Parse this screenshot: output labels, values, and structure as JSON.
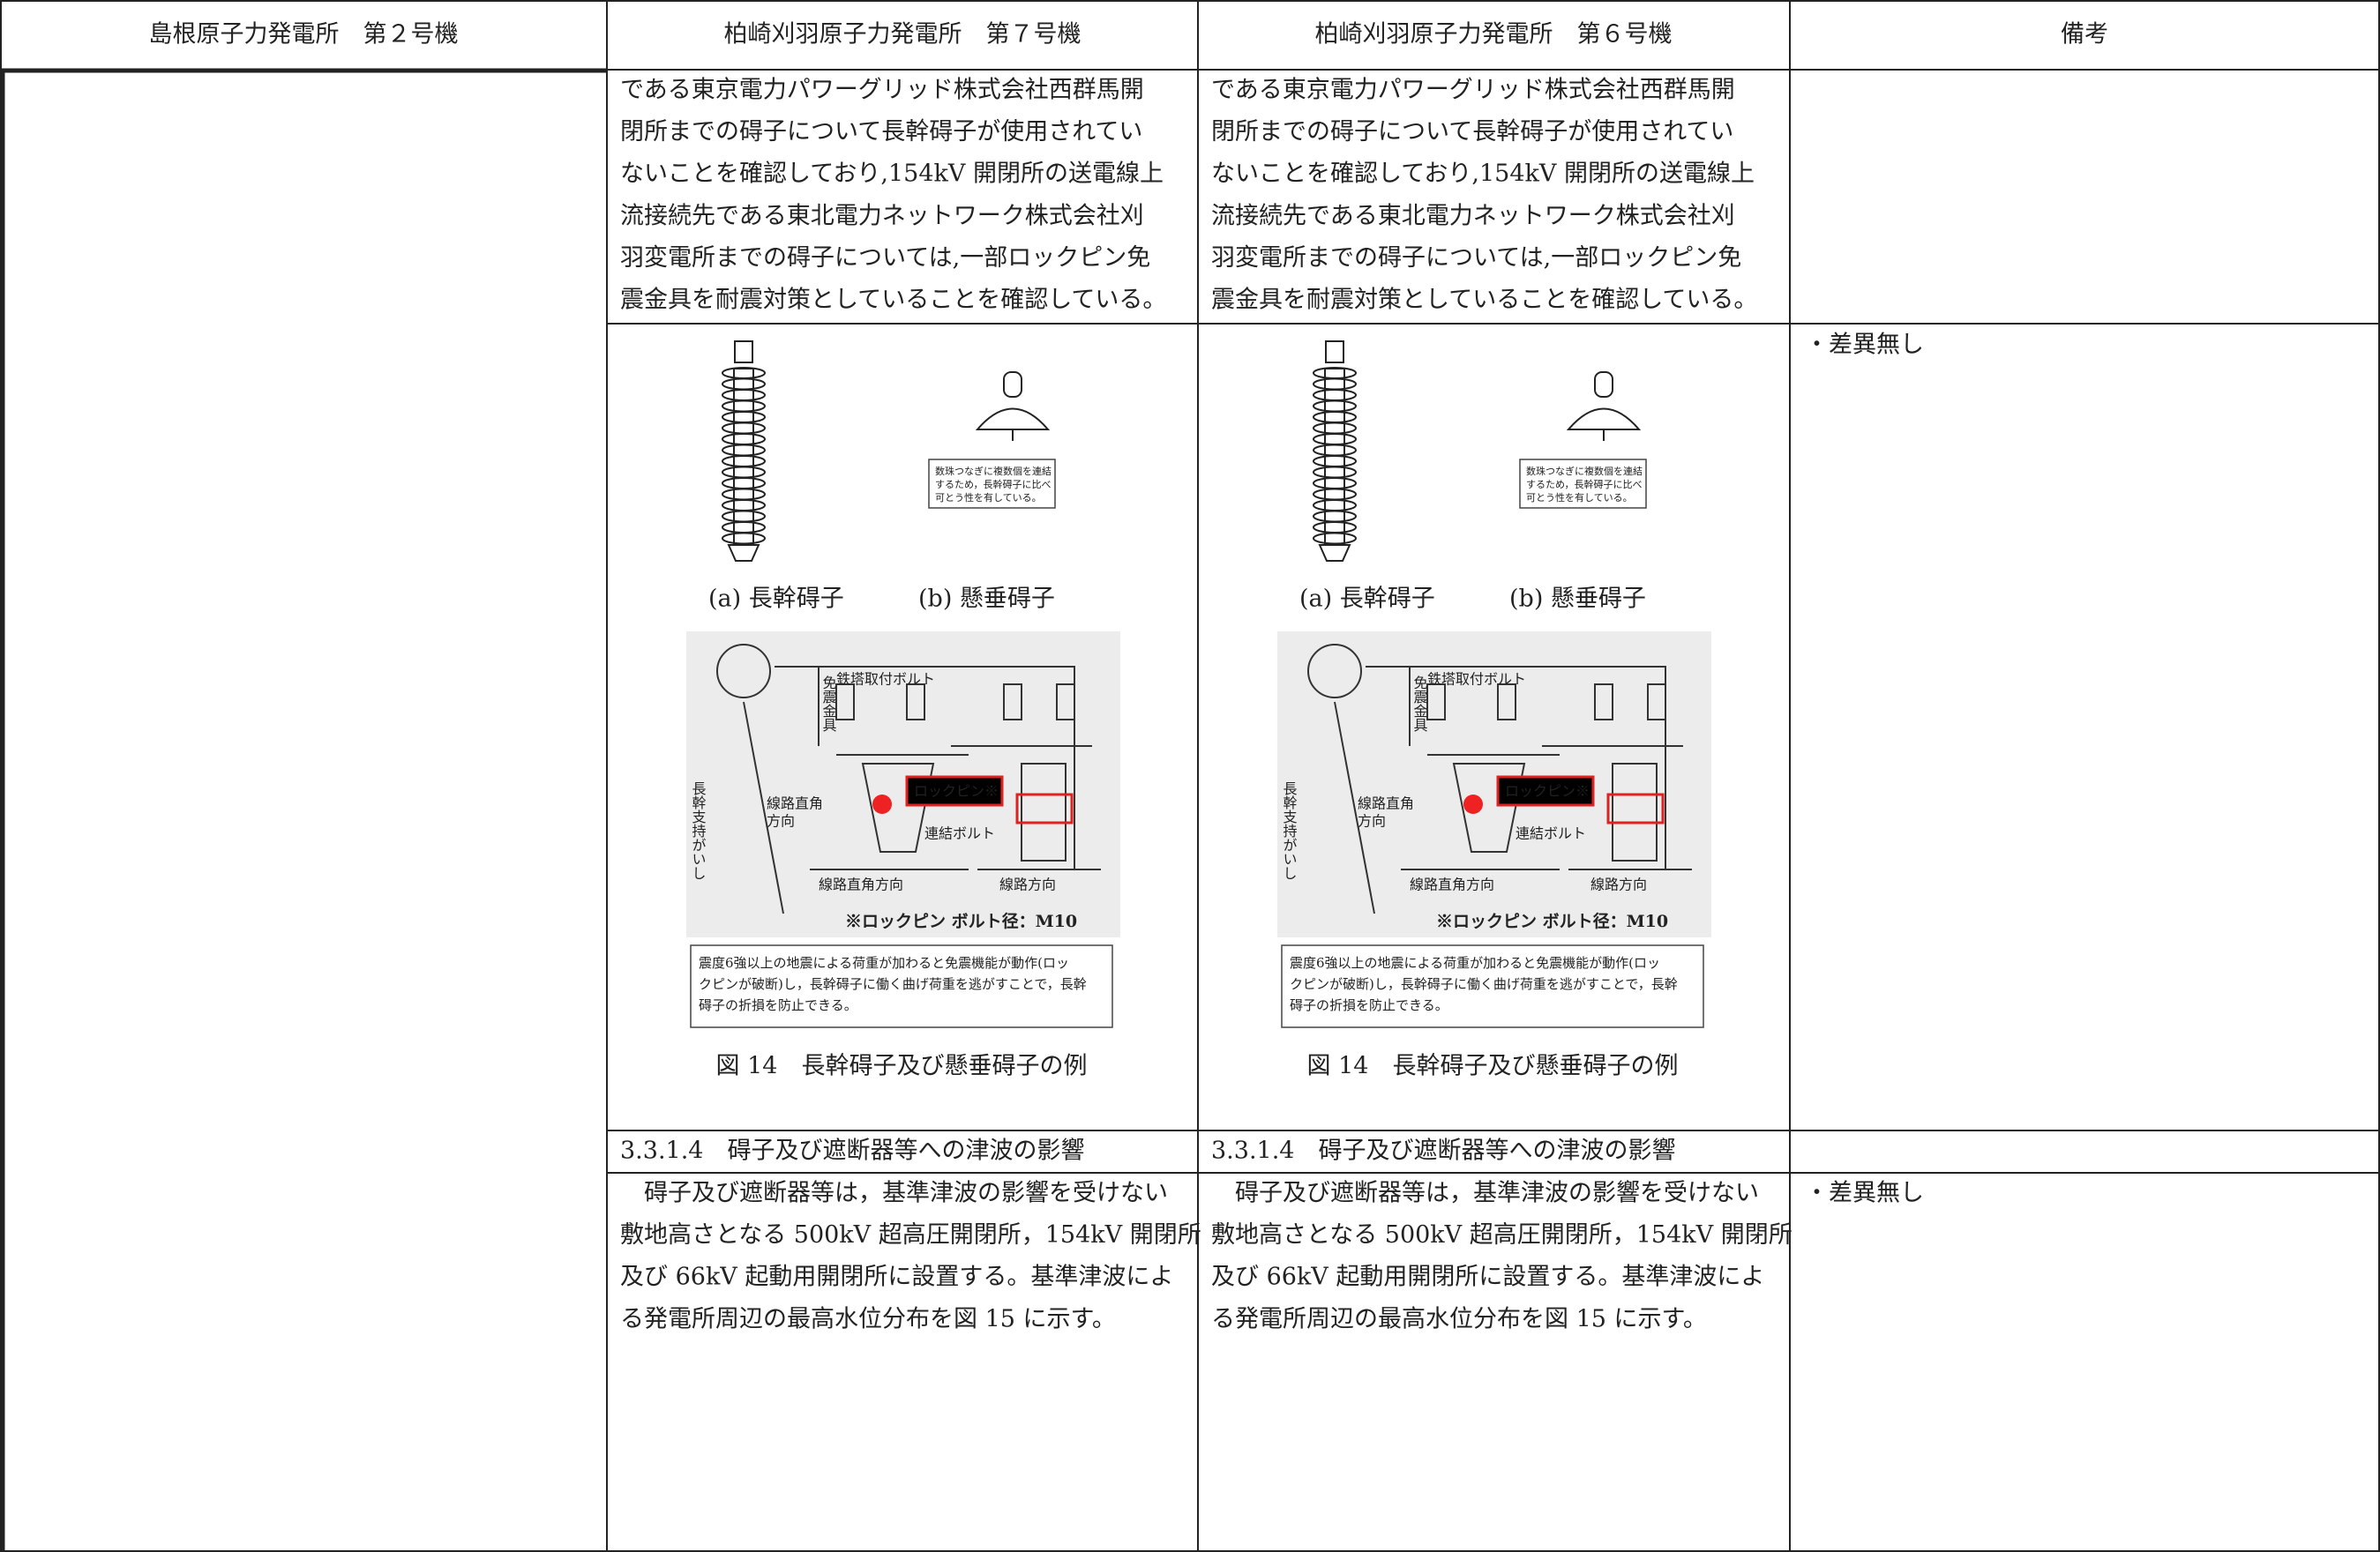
{
  "header": [
    "島根原子力発電所　第２号機",
    "柏崎刈羽原子力発電所　第７号機",
    "柏崎刈羽原子力発電所　第６号機",
    "備考"
  ],
  "columns": [
    {
      "para1": [
        "である東京電力パワーグリッド株式会社西群馬開",
        "閉所までの碍子について長幹碍子が使用されてい",
        "ないことを確認しており,154kV 開閉所の送電線上",
        "流接続先である東北電力ネットワーク株式会社刈",
        "羽変電所までの碍子については,一部ロックピン免",
        "震金具を耐震対策としていることを確認している。"
      ],
      "figure": {
        "label_a": "(a) 長幹碍子",
        "label_b": "(b) 懸垂碍子",
        "note": [
          "数珠つなぎに複数個を連結",
          "するため，長幹碍子に比べ",
          "可とう性を有している。"
        ],
        "diagram": {
          "tower_bolt": "鉄塔取付ボルト",
          "damper": "免震金具",
          "support": "長幹支持がいし",
          "lock_pin": "ロックピン※",
          "perp_left": [
            "線路直角",
            "方向"
          ],
          "link_bolt": "連結ボルト",
          "perp_bottom": "線路直角方向",
          "line_dir": "線路方向",
          "footnote": "※ロックピン ボルト径：M10"
        },
        "caption_box": [
          "震度6強以上の地震による荷重が加わると免震機能が動作(ロッ",
          "クピンが破断)し，長幹碍子に働く曲げ荷重を逃がすことで，長幹",
          "碍子の折損を防止できる。"
        ],
        "caption": "図 14　長幹碍子及び懸垂碍子の例"
      },
      "heading": "3.3.1.4　碍子及び遮断器等への津波の影響",
      "para2": [
        "　碍子及び遮断器等は，基準津波の影響を受けない",
        "敷地高さとなる 500kV 超高圧開閉所，154kV 開閉所",
        "及び 66kV 起動用開閉所に設置する。基準津波によ",
        "る発電所周辺の最高水位分布を図 15 に示す。"
      ]
    },
    {
      "para1": [
        "である東京電力パワーグリッド株式会社西群馬開",
        "閉所までの碍子について長幹碍子が使用されてい",
        "ないことを確認しており,154kV 開閉所の送電線上",
        "流接続先である東北電力ネットワーク株式会社刈",
        "羽変電所までの碍子については,一部ロックピン免",
        "震金具を耐震対策としていることを確認している。"
      ],
      "figure": {
        "label_a": "(a) 長幹碍子",
        "label_b": "(b) 懸垂碍子",
        "note": [
          "数珠つなぎに複数個を連結",
          "するため，長幹碍子に比べ",
          "可とう性を有している。"
        ],
        "diagram": {
          "tower_bolt": "鉄塔取付ボルト",
          "damper": "免震金具",
          "support": "長幹支持がいし",
          "lock_pin": "ロックピン※",
          "perp_left": [
            "線路直角",
            "方向"
          ],
          "link_bolt": "連結ボルト",
          "perp_bottom": "線路直角方向",
          "line_dir": "線路方向",
          "footnote": "※ロックピン ボルト径：M10"
        },
        "caption_box": [
          "震度6強以上の地震による荷重が加わると免震機能が動作(ロッ",
          "クピンが破断)し，長幹碍子に働く曲げ荷重を逃がすことで，長幹",
          "碍子の折損を防止できる。"
        ],
        "caption": "図 14　長幹碍子及び懸垂碍子の例"
      },
      "heading": "3.3.1.4　碍子及び遮断器等への津波の影響",
      "para2": [
        "　碍子及び遮断器等は，基準津波の影響を受けない",
        "敷地高さとなる 500kV 超高圧開閉所，154kV 開閉所",
        "及び 66kV 起動用開閉所に設置する。基準津波によ",
        "る発電所周辺の最高水位分布を図 15 に示す。"
      ]
    }
  ],
  "remarks": [
    "・差異無し",
    "・差異無し"
  ]
}
